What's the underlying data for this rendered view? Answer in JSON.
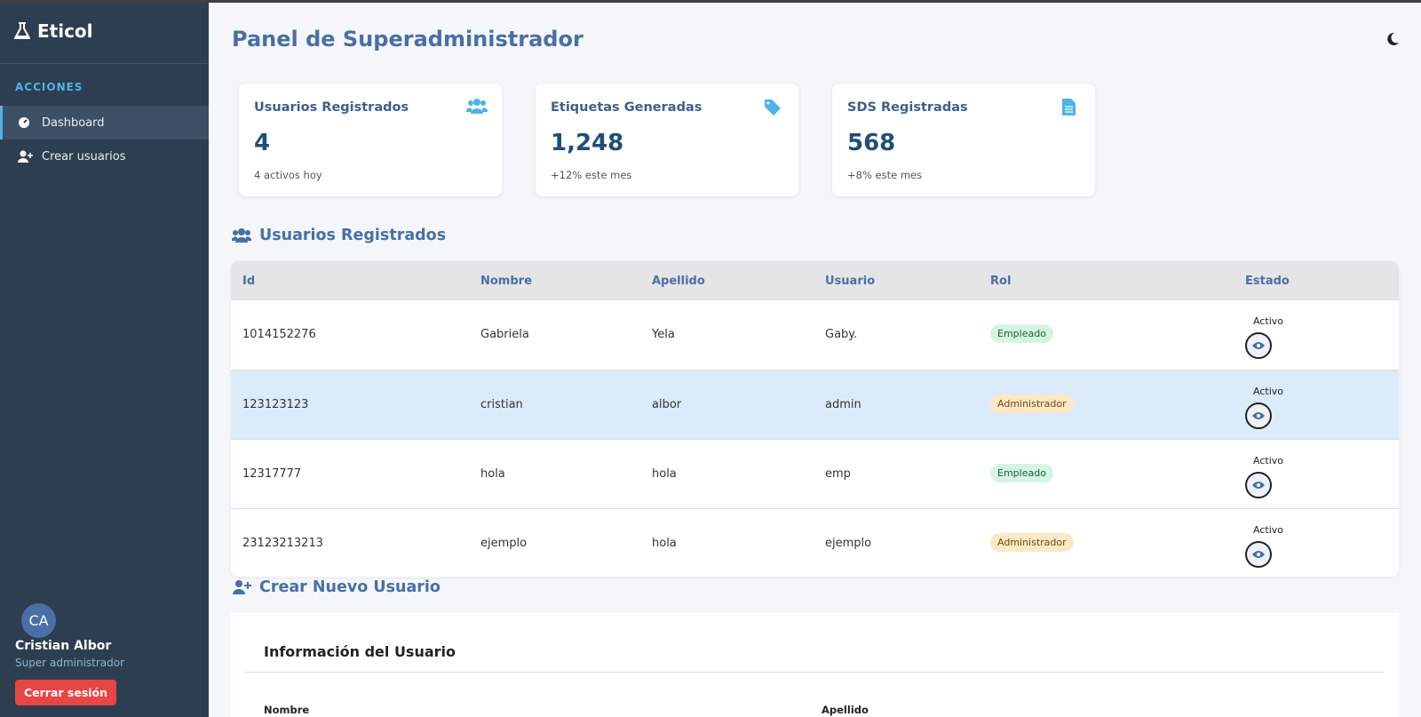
{
  "sidebar": {
    "brand": "Eticol",
    "section": "ACCIONES",
    "nav": [
      "Dashboard",
      "Crear usuarios"
    ],
    "user": {
      "initials": "CA",
      "name": "Cristian Albor",
      "role": "Super administrador"
    },
    "logout": "Cerrar sesión"
  },
  "header": {
    "title": "Panel de Superadministrador"
  },
  "stats": [
    {
      "title": "Usuarios Registrados",
      "value": "4",
      "note": "4 activos hoy"
    },
    {
      "title": "Etiquetas Generadas",
      "value": "1,248",
      "note": "+12% este mes"
    },
    {
      "title": "SDS Registradas",
      "value": "568",
      "note": "+8% este mes"
    }
  ],
  "users_section": {
    "title": "Usuarios Registrados"
  },
  "table": {
    "columns": [
      "Id",
      "Nombre",
      "Apellido",
      "Usuario",
      "Rol",
      "Estado"
    ],
    "rows": [
      [
        "1014152276",
        "Gabriela",
        "Yela",
        "Gaby.",
        "Empleado",
        "Activo"
      ],
      [
        "123123123",
        "cristian",
        "albor",
        "admin",
        "Administrador",
        "Activo"
      ],
      [
        "12317777",
        "hola",
        "hola",
        "emp",
        "Empleado",
        "Activo"
      ],
      [
        "23123213213",
        "ejemplo",
        "hola",
        "ejemplo",
        "Administrador",
        "Activo"
      ]
    ]
  },
  "create_section": {
    "title": "Crear Nuevo Usuario",
    "form_title": "Información del Usuario",
    "fields": [
      "Nombre",
      "Apellido"
    ]
  }
}
